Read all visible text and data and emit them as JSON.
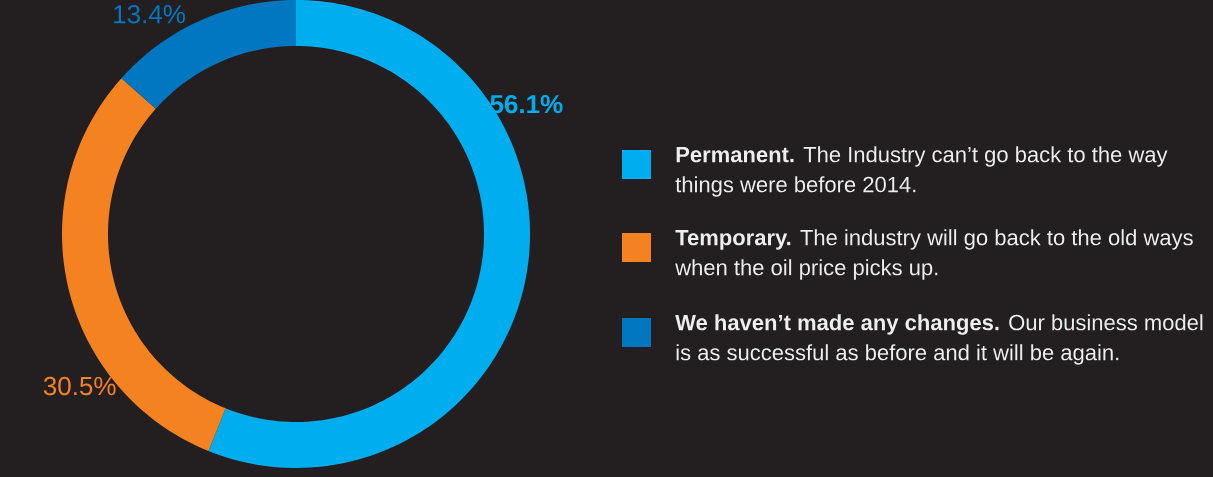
{
  "chart_data": {
    "type": "donut",
    "categories": [
      "**Permanent.** The Industry can’t go back to the way things were before 2014.",
      "**Temporary.** The industry will go back to the old ways when the oil price picks up.",
      "**We haven’t made any changes.** Our business model is as successful as before and it will be again."
    ],
    "values": [
      56.1,
      30.5,
      13.4
    ],
    "colors": [
      "#00aeef",
      "#f58220",
      "#0077c0"
    ],
    "value_labels": [
      "**56.1%**",
      "30.5%",
      "13.4%"
    ],
    "legend": "right"
  }
}
